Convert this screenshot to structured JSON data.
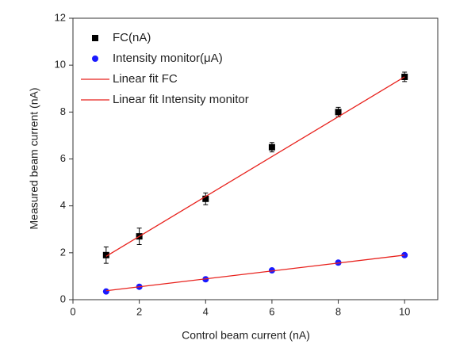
{
  "chart_data": {
    "type": "scatter",
    "x_label": "Control beam current (nA)",
    "y_label": "Measured beam current (nA)",
    "xlim": [
      0,
      11
    ],
    "ylim": [
      0,
      12
    ],
    "xticks": [
      0,
      2,
      4,
      6,
      8,
      10
    ],
    "yticks": [
      0,
      2,
      4,
      6,
      8,
      10,
      12
    ],
    "legend": "upper left",
    "series": [
      {
        "name": "FC(nA)",
        "color": "#000000",
        "marker": "square",
        "x": [
          1,
          2,
          4,
          6,
          8,
          10
        ],
        "values": [
          1.9,
          2.7,
          4.3,
          6.5,
          8.0,
          9.5
        ],
        "errors": [
          0.35,
          0.35,
          0.25,
          0.2,
          0.2,
          0.2
        ]
      },
      {
        "name": "Intensity monitor(μA)",
        "color": "#1a1aff",
        "marker": "circle",
        "x": [
          1,
          2,
          4,
          6,
          8,
          10
        ],
        "values": [
          0.35,
          0.55,
          0.87,
          1.25,
          1.58,
          1.9
        ]
      },
      {
        "name": "Linear fit FC",
        "color": "#e8211c",
        "marker": "line",
        "x": [
          1,
          10
        ],
        "values": [
          1.85,
          9.5
        ]
      },
      {
        "name": "Linear fit Intensity monitor",
        "color": "#e8211c",
        "marker": "line",
        "x": [
          1,
          10
        ],
        "values": [
          0.38,
          1.9
        ]
      }
    ]
  }
}
